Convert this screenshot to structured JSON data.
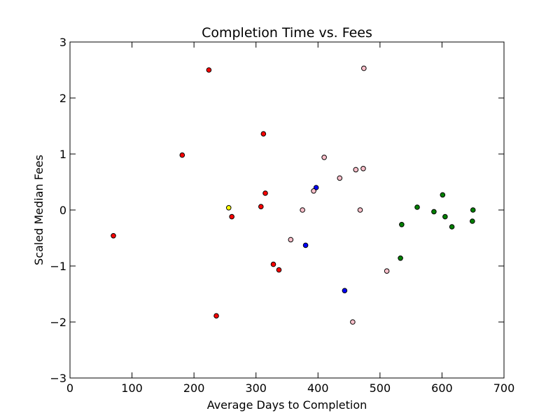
{
  "chart_data": {
    "type": "scatter",
    "title": "Completion Time vs. Fees",
    "xlabel": "Average Days to Completion",
    "ylabel": "Scaled Median Fees",
    "xlim": [
      0,
      700
    ],
    "ylim": [
      -3,
      3
    ],
    "xticks": [
      "0",
      "100",
      "200",
      "300",
      "400",
      "500",
      "600",
      "700"
    ],
    "yticks": [
      "3",
      "2",
      "1",
      "0",
      "−1",
      "−2",
      "−3"
    ],
    "grid": false,
    "series": [
      {
        "color": "#ff0000",
        "points": [
          {
            "x": 70,
            "y": -0.46
          },
          {
            "x": 181,
            "y": 0.98
          },
          {
            "x": 224,
            "y": 2.5
          },
          {
            "x": 236,
            "y": -1.89
          },
          {
            "x": 261,
            "y": -0.12
          },
          {
            "x": 308,
            "y": 0.06
          },
          {
            "x": 312,
            "y": 1.36
          },
          {
            "x": 315,
            "y": 0.3
          },
          {
            "x": 328,
            "y": -0.97
          },
          {
            "x": 337,
            "y": -1.07
          }
        ]
      },
      {
        "color": "#ffff00",
        "points": [
          {
            "x": 256,
            "y": 0.04
          }
        ]
      },
      {
        "color": "#0000ff",
        "points": [
          {
            "x": 380,
            "y": -0.63
          },
          {
            "x": 397,
            "y": 0.4
          },
          {
            "x": 443,
            "y": -1.44
          }
        ]
      },
      {
        "color": "#ffc0cb",
        "points": [
          {
            "x": 356,
            "y": -0.53
          },
          {
            "x": 375,
            "y": 0.0
          },
          {
            "x": 393,
            "y": 0.34
          },
          {
            "x": 410,
            "y": 0.94
          },
          {
            "x": 435,
            "y": 0.57
          },
          {
            "x": 456,
            "y": -2.0
          },
          {
            "x": 461,
            "y": 0.72
          },
          {
            "x": 468,
            "y": 0.0
          },
          {
            "x": 473,
            "y": 0.74
          },
          {
            "x": 474,
            "y": 2.53
          },
          {
            "x": 511,
            "y": -1.09
          }
        ]
      },
      {
        "color": "#008000",
        "points": [
          {
            "x": 533,
            "y": -0.86
          },
          {
            "x": 535,
            "y": -0.26
          },
          {
            "x": 560,
            "y": 0.05
          },
          {
            "x": 587,
            "y": -0.03
          },
          {
            "x": 601,
            "y": 0.27
          },
          {
            "x": 605,
            "y": -0.12
          },
          {
            "x": 616,
            "y": -0.3
          },
          {
            "x": 649,
            "y": -0.2
          },
          {
            "x": 650,
            "y": 0.0
          }
        ]
      }
    ]
  }
}
